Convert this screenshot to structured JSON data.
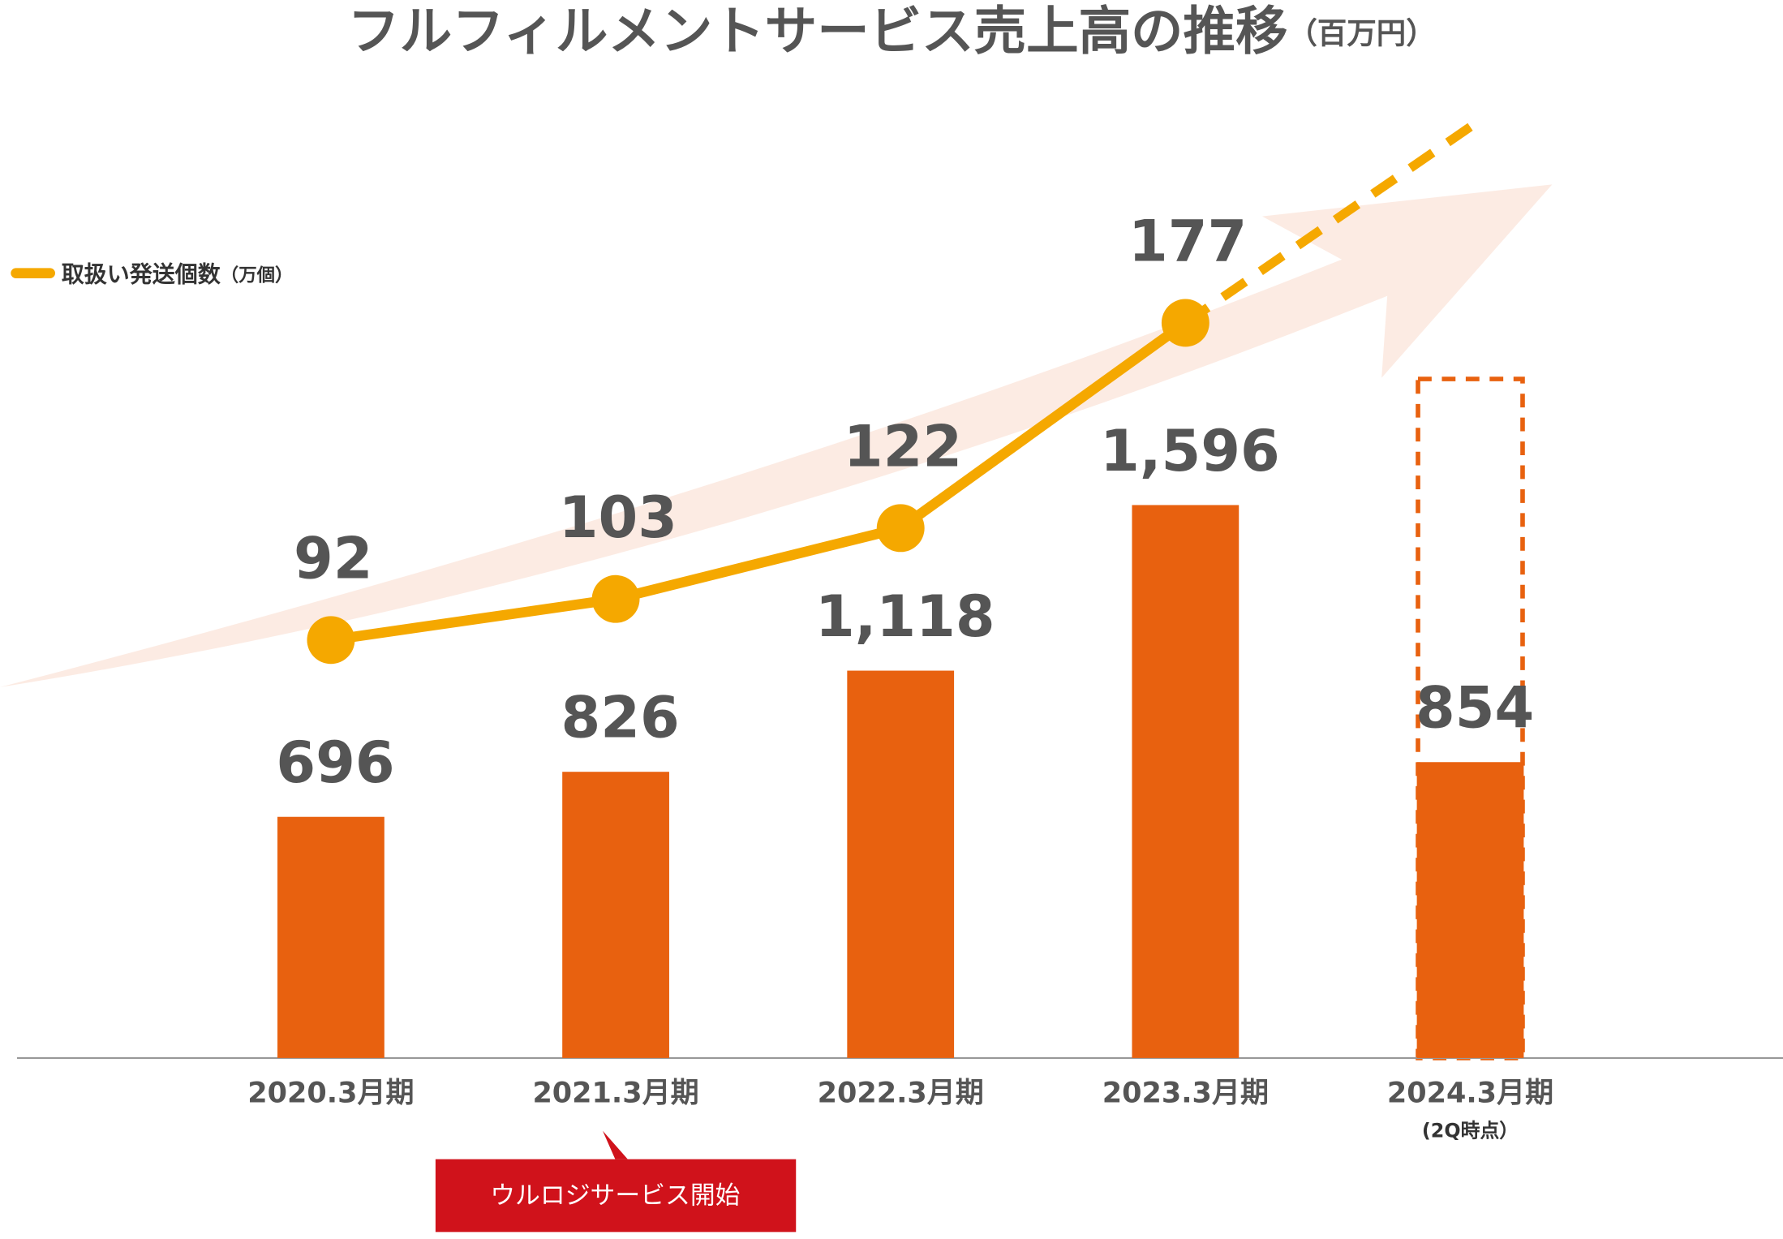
{
  "chart_data": {
    "type": "bar",
    "title": "フルフィルメントサービス売上高の推移",
    "subtitle": "（百万円）",
    "categories": [
      "2020.3月期",
      "2021.3月期",
      "2022.3月期",
      "2023.3月期",
      "2024.3月期"
    ],
    "category_note": "(2Q時点）",
    "annotation": "ウルロジサービス開始",
    "ylim": [
      0,
      2725
    ],
    "y2lim": [
      -20,
      233
    ],
    "series": [
      {
        "type": "bar",
        "color": "#e8610f",
        "values": [
          696,
          826,
          1118,
          1596,
          854
        ],
        "value_labels": [
          "696",
          "826",
          "1,118",
          "1,596",
          "854"
        ]
      },
      {
        "type": "line",
        "name": "取扱い発送個数",
        "unit": "（万個）",
        "axis": "y2",
        "color": "#f5a800",
        "values": [
          92,
          103,
          122,
          177,
          null
        ]
      }
    ]
  }
}
